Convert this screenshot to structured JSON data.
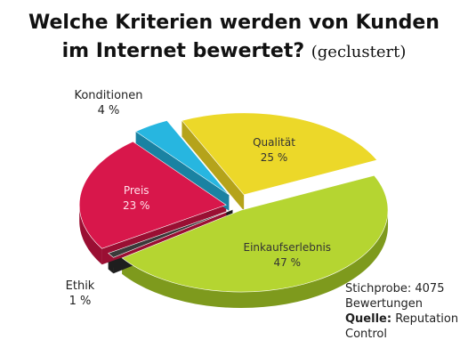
{
  "title_line1": "Welche Kriterien werden von Kunden",
  "title_line2": "im Internet bewertet?",
  "title_suffix": "(geclustert)",
  "note": {
    "sample": "Stichprobe: 4075",
    "sample2": "Bewertungen",
    "source_label": "Quelle:",
    "source_value": "Reputation",
    "source_value2": "Control"
  },
  "chart_data": {
    "type": "pie",
    "title": "Welche Kriterien werden von Kunden im Internet bewertet? (geclustert)",
    "slices": [
      {
        "name": "Einkaufserlebnis",
        "value": 47,
        "label": "47 %",
        "color": "#b5d531",
        "side": "#7e9a1d"
      },
      {
        "name": "Ethik",
        "value": 1,
        "label": "1 %",
        "color": "#3a3a3a",
        "side": "#1e1e1e"
      },
      {
        "name": "Preis",
        "value": 23,
        "label": "23 %",
        "color": "#d8174b",
        "side": "#9a0f33"
      },
      {
        "name": "Konditionen",
        "value": 4,
        "label": "4 %",
        "color": "#27b6e0",
        "side": "#1a82a2"
      },
      {
        "name": "Qualität",
        "value": 25,
        "label": "25 %",
        "color": "#ecd829",
        "side": "#b5a31a"
      }
    ]
  }
}
